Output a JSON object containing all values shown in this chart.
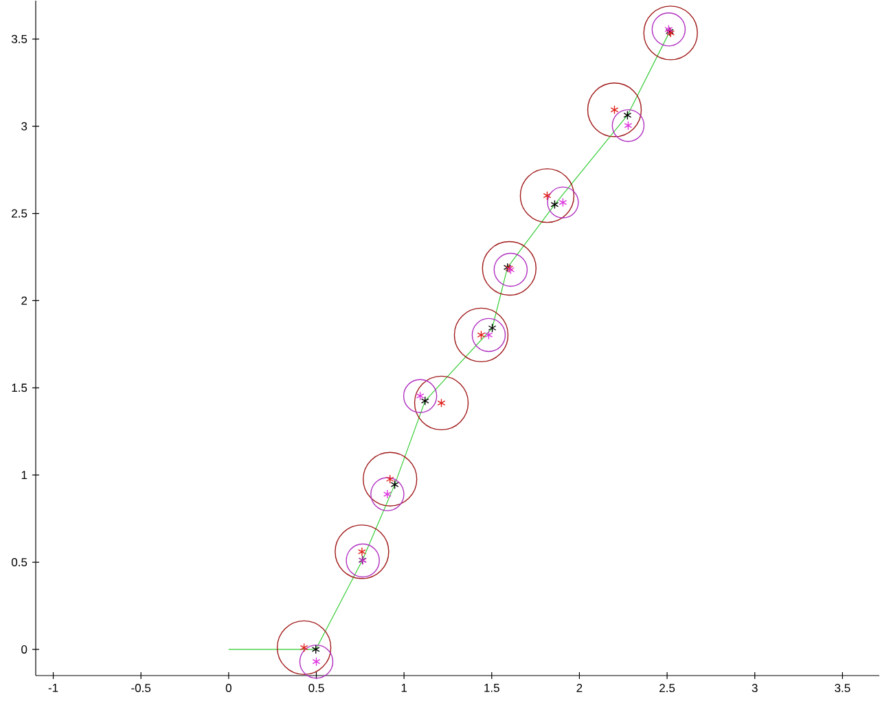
{
  "chart_data": {
    "type": "scatter",
    "xlim": [
      -1.1,
      3.71
    ],
    "ylim": [
      -0.15,
      3.72
    ],
    "xticks": [
      -1,
      -0.5,
      0,
      0.5,
      1,
      1.5,
      2,
      2.5,
      3,
      3.5
    ],
    "yticks": [
      0,
      0.5,
      1,
      1.5,
      2,
      2.5,
      3,
      3.5
    ],
    "grid": false,
    "series": [
      {
        "type": "line",
        "color": "#33cc33",
        "marker": "none",
        "line_style": "solid",
        "x": [
          0,
          0.497,
          0.763,
          0.947,
          1.12,
          1.503,
          1.59,
          1.859,
          2.274,
          2.515
        ],
        "values": [
          0,
          0,
          0.512,
          0.945,
          1.425,
          1.843,
          2.19,
          2.551,
          3.063,
          3.543
        ]
      },
      {
        "type": "bubble",
        "color": "#a01818",
        "x": [
          0.43,
          0.76,
          0.92,
          1.213,
          1.44,
          1.6,
          1.816,
          2.2,
          2.52
        ],
        "values": [
          0.01,
          0.56,
          0.976,
          1.413,
          1.803,
          2.185,
          2.602,
          3.094,
          3.535
        ],
        "sizes": [
          1,
          1,
          1,
          1,
          1,
          1,
          1,
          1,
          1
        ]
      },
      {
        "type": "bubble",
        "color": "#b030c0",
        "x": [
          0.5,
          0.765,
          0.905,
          1.092,
          1.483,
          1.608,
          1.906,
          2.278,
          2.509
        ],
        "values": [
          -0.07,
          0.51,
          0.89,
          1.453,
          1.803,
          2.177,
          2.563,
          3.004,
          3.555
        ],
        "sizes": [
          0.38,
          0.38,
          0.38,
          0.38,
          0.38,
          0.38,
          0.33,
          0.35,
          0.38
        ]
      },
      {
        "color": "#000000",
        "marker": "cross",
        "x": [
          0.497,
          0.763,
          0.947,
          1.12,
          1.503,
          1.59,
          1.859,
          2.274,
          2.515
        ],
        "values": [
          0,
          0.512,
          0.945,
          1.425,
          1.843,
          2.19,
          2.551,
          3.063,
          3.543
        ]
      },
      {
        "color": "#e0201a",
        "marker": "cross",
        "x": [
          0.43,
          0.76,
          0.92,
          1.213,
          1.44,
          1.6,
          1.816,
          2.2,
          2.52
        ],
        "values": [
          0.01,
          0.56,
          0.976,
          1.413,
          1.803,
          2.185,
          2.602,
          3.094,
          3.535
        ]
      },
      {
        "color": "#dd33dd",
        "marker": "cross",
        "x": [
          0.5,
          0.765,
          0.905,
          1.092,
          1.483,
          1.608,
          1.906,
          2.278,
          2.509
        ],
        "values": [
          -0.07,
          0.51,
          0.89,
          1.453,
          1.803,
          2.177,
          2.563,
          3.004,
          3.555
        ]
      }
    ]
  }
}
